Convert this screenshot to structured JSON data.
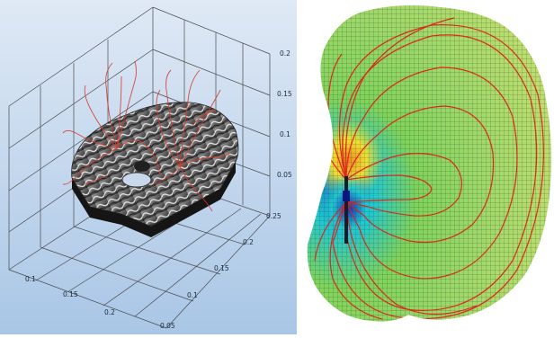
{
  "left_view": {
    "background_top": "#dfe9f5",
    "background_bottom": "#a9c6e6",
    "axis_color": "#4a4a4a",
    "streamline_color": "#d63a2a",
    "z_ticks": [
      "0.2",
      "0.15",
      "0.1",
      "0.05"
    ],
    "y_ticks": [
      "0.25",
      "0.2",
      "0.15",
      "0.1"
    ],
    "x_ticks": [
      "0.1",
      "0.15",
      "0.2",
      "0.05"
    ]
  },
  "right_view": {
    "streamline_color": "#e0201a",
    "mesh_color": "#2a3a2a",
    "field_colors": [
      "#1030c0",
      "#20c8d0",
      "#7fd35a",
      "#f0e030",
      "#f08a20"
    ]
  }
}
